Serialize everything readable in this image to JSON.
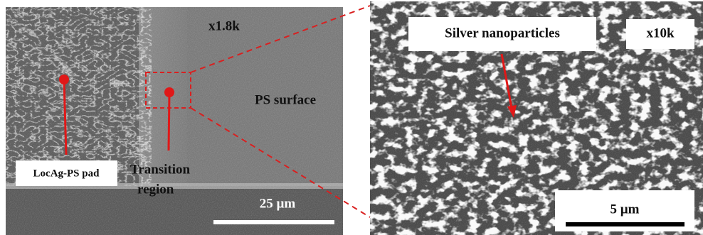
{
  "left_panel": {
    "magnification": "x1.8k",
    "region_label": "PS surface",
    "pad_label": "LocAg-PS pad",
    "transition_label": [
      "Transition",
      "region"
    ],
    "scale_bar": "25 µm"
  },
  "right_panel": {
    "feature_label": "Silver nanoparticles",
    "magnification": "x10k",
    "scale_bar": "5 µm"
  }
}
